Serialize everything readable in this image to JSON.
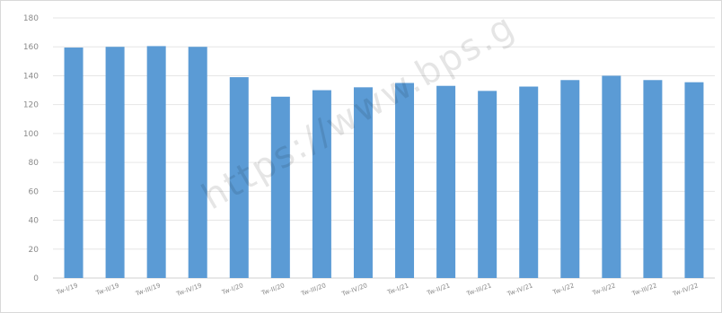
{
  "chart_data": {
    "type": "bar",
    "title": "",
    "xlabel": "",
    "ylabel": "",
    "ylim": [
      0,
      180
    ],
    "yticks": [
      "0",
      "20",
      "40",
      "60",
      "80",
      "100",
      "120",
      "140",
      "160",
      "180"
    ],
    "grid": true,
    "legend": "none",
    "categories": [
      "Tw-I/19",
      "Tw-II/19",
      "Tw-III/19",
      "Tw-IV/19",
      "Tw-I/20",
      "Tw-II/20",
      "Tw-III/20",
      "Tw-IV/20",
      "Tw-I/21",
      "Tw-II/21",
      "Tw-III/21",
      "Tw-IV/21",
      "Tw-I/22",
      "Tw-II/22",
      "Tw-III/22",
      "Tw-IV/22"
    ],
    "values": [
      159.5,
      160,
      160.5,
      160,
      139,
      125.5,
      130,
      132,
      135,
      133,
      129.5,
      132.5,
      137,
      140,
      137,
      135.5
    ],
    "bar_color": "#5b9bd5"
  },
  "watermark": "https://www.bps.g"
}
